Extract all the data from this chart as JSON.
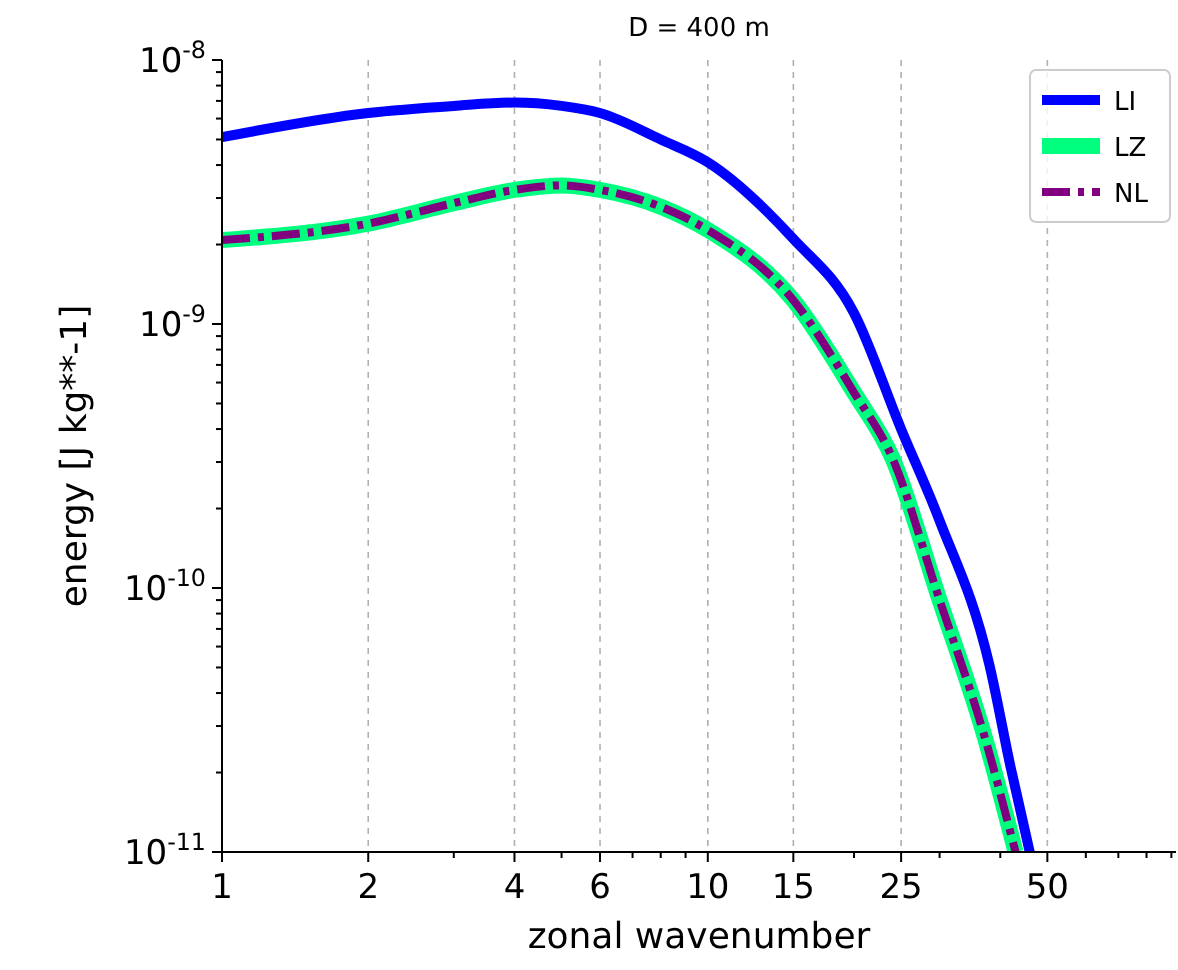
{
  "chart_data": {
    "type": "line",
    "title": "D = 400 m",
    "xlabel": "zonal wavenumber",
    "ylabel": "energy [J kg**-1]",
    "log": "xy",
    "grid": "x",
    "legend": "top right",
    "xlim": [
      1,
      92
    ],
    "xticks": [
      1,
      2,
      {
        "value": 3,
        "label": null
      },
      4,
      {
        "value": 5,
        "label": null
      },
      6,
      {
        "value": 7,
        "label": null
      },
      {
        "value": 8,
        "label": null
      },
      {
        "value": 9,
        "label": null
      },
      10,
      15,
      {
        "value": 20,
        "label": null
      },
      25,
      {
        "value": 30,
        "label": null
      },
      {
        "value": 40,
        "label": null
      },
      50,
      {
        "value": 60,
        "label": null
      },
      {
        "value": 70,
        "label": null
      },
      {
        "value": 80,
        "label": null
      },
      {
        "value": 90,
        "label": null
      }
    ],
    "ylim": [
      1e-11,
      1e-08
    ],
    "yticks": [
      {
        "value": 1e-11,
        "label": "10$^{-11}$"
      },
      {
        "value": 2e-11,
        "label": null
      },
      {
        "value": 3e-11,
        "label": null
      },
      {
        "value": 4e-11,
        "label": null
      },
      {
        "value": 5e-11,
        "label": null
      },
      {
        "value": 6e-11,
        "label": null
      },
      {
        "value": 7e-11,
        "label": null
      },
      {
        "value": 8e-11,
        "label": null
      },
      {
        "value": 9e-11,
        "label": null
      },
      {
        "value": 1e-10,
        "label": "10$^{-10}$"
      },
      {
        "value": 2e-10,
        "label": null
      },
      {
        "value": 3e-10,
        "label": null
      },
      {
        "value": 4e-10,
        "label": null
      },
      {
        "value": 5e-10,
        "label": null
      },
      {
        "value": 6e-10,
        "label": null
      },
      {
        "value": 7e-10,
        "label": null
      },
      {
        "value": 8e-10,
        "label": null
      },
      {
        "value": 9e-10,
        "label": null
      },
      {
        "value": 1e-09,
        "label": "10$^{-9}$"
      },
      {
        "value": 2e-09,
        "label": null
      },
      {
        "value": 3e-09,
        "label": null
      },
      {
        "value": 4e-09,
        "label": null
      },
      {
        "value": 5e-09,
        "label": null
      },
      {
        "value": 6e-09,
        "label": null
      },
      {
        "value": 7e-09,
        "label": null
      },
      {
        "value": 8e-09,
        "label": null
      },
      {
        "value": 9e-09,
        "label": null
      },
      {
        "value": 1e-08,
        "label": "10$^{-8}$"
      }
    ],
    "series": [
      {
        "name": "LI",
        "color": "#0000ff",
        "line_style": "solid",
        "x": [
          1,
          2,
          3,
          4,
          5,
          6,
          8,
          10,
          15,
          20,
          25,
          30,
          38,
          42,
          46
        ],
        "values": [
          5.1e-09,
          6.3e-09,
          6.7e-09,
          6.9e-09,
          6.7e-09,
          6.3e-09,
          5e-09,
          4.1e-09,
          2.1e-09,
          1.1e-09,
          4e-10,
          1.8e-10,
          5.1e-11,
          2.1e-11,
          1e-11
        ]
      },
      {
        "name": "LZ",
        "color": "#00ff7f",
        "line_style": "solid",
        "x": [
          1,
          2,
          3,
          4,
          5,
          6,
          8,
          10,
          15,
          20,
          24,
          30,
          37,
          43
        ],
        "values": [
          2.08e-09,
          2.4e-09,
          2.87e-09,
          3.22e-09,
          3.35e-09,
          3.22e-09,
          2.78e-09,
          2.27e-09,
          1.23e-09,
          5.5e-10,
          3.1e-10,
          9e-11,
          2.8e-11,
          1e-11
        ]
      },
      {
        "name": "NL",
        "color": "#800080",
        "line_style": "dashed",
        "x": [
          1,
          2,
          3,
          4,
          5,
          6,
          8,
          10,
          15,
          20,
          24,
          30,
          37,
          43
        ],
        "values": [
          2.08e-09,
          2.4e-09,
          2.87e-09,
          3.22e-09,
          3.35e-09,
          3.22e-09,
          2.78e-09,
          2.27e-09,
          1.23e-09,
          5.5e-10,
          3.1e-10,
          9e-11,
          2.8e-11,
          1e-11
        ]
      }
    ]
  }
}
